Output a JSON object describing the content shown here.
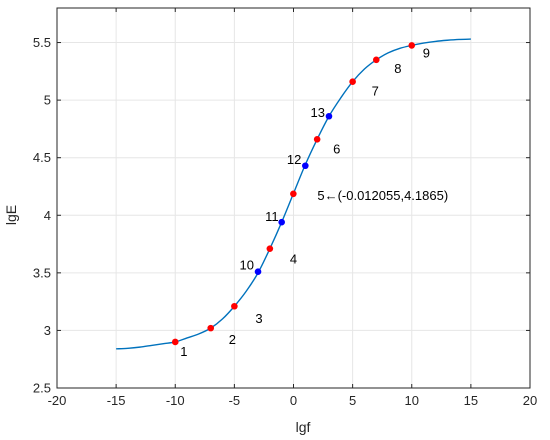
{
  "chart_data": {
    "type": "line",
    "title": "",
    "xlabel": "lgf",
    "ylabel": "lgE",
    "xlim": [
      -20,
      20
    ],
    "ylim": [
      2.5,
      5.8
    ],
    "x_ticks": [
      -20,
      -15,
      -10,
      -5,
      0,
      5,
      10,
      15,
      20
    ],
    "x_tick_labels": [
      "-20",
      "-15",
      "-10",
      "-5",
      "0",
      "5",
      "10",
      "15",
      "20"
    ],
    "y_ticks": [
      2.5,
      3,
      3.5,
      4,
      4.5,
      5,
      5.5
    ],
    "y_tick_labels": [
      "2.5",
      "3",
      "3.5",
      "4",
      "4.5",
      "5",
      "5.5"
    ],
    "grid": true,
    "colors": {
      "curve": "#0072BD",
      "red_points": "#ff0000",
      "blue_points": "#0000ff",
      "grid": "#e6e6e6",
      "axes": "#262626"
    },
    "curve": {
      "name": "",
      "x": [
        -15,
        -14,
        -13,
        -12,
        -11,
        -10,
        -9,
        -8,
        -7,
        -6,
        -5,
        -4,
        -3,
        -2,
        -1,
        0,
        1,
        2,
        3,
        4,
        5,
        6,
        7,
        8,
        9,
        10,
        11,
        12,
        13,
        14,
        15
      ],
      "y": [
        2.84,
        2.845,
        2.855,
        2.87,
        2.885,
        2.9,
        2.935,
        2.97,
        3.02,
        3.1,
        3.21,
        3.34,
        3.5,
        3.71,
        3.94,
        4.19,
        4.44,
        4.66,
        4.86,
        5.02,
        5.16,
        5.27,
        5.35,
        5.41,
        5.45,
        5.475,
        5.495,
        5.51,
        5.52,
        5.527,
        5.53
      ]
    },
    "points": [
      {
        "label": "1",
        "x": -10,
        "y": 2.9,
        "color": "red"
      },
      {
        "label": "2",
        "x": -7,
        "y": 3.02,
        "color": "red"
      },
      {
        "label": "3",
        "x": -5,
        "y": 3.21,
        "color": "red"
      },
      {
        "label": "4",
        "x": -2,
        "y": 3.71,
        "color": "red"
      },
      {
        "label": "5",
        "x": -0.012055,
        "y": 4.1865,
        "color": "red"
      },
      {
        "label": "6",
        "x": 2,
        "y": 4.66,
        "color": "red"
      },
      {
        "label": "7",
        "x": 5,
        "y": 5.16,
        "color": "red"
      },
      {
        "label": "8",
        "x": 7,
        "y": 5.35,
        "color": "red"
      },
      {
        "label": "9",
        "x": 10,
        "y": 5.475,
        "color": "red"
      },
      {
        "label": "10",
        "x": -3,
        "y": 3.51,
        "color": "blue"
      },
      {
        "label": "11",
        "x": -1,
        "y": 3.94,
        "color": "blue"
      },
      {
        "label": "12",
        "x": 1,
        "y": 4.43,
        "color": "blue"
      },
      {
        "label": "13",
        "x": 3,
        "y": 4.86,
        "color": "blue"
      }
    ],
    "annotations": [
      {
        "id": "a1",
        "text": "1"
      },
      {
        "id": "a2",
        "text": "2"
      },
      {
        "id": "a3",
        "text": "3"
      },
      {
        "id": "a4",
        "text": "4"
      },
      {
        "id": "a5",
        "text": "5←(-0.012055,4.1865)"
      },
      {
        "id": "a6",
        "text": "6"
      },
      {
        "id": "a7",
        "text": "7"
      },
      {
        "id": "a8",
        "text": "8"
      },
      {
        "id": "a9",
        "text": "9"
      },
      {
        "id": "a10",
        "text": "10"
      },
      {
        "id": "a11",
        "text": "11"
      },
      {
        "id": "a12",
        "text": "12"
      },
      {
        "id": "a13",
        "text": "13"
      }
    ]
  }
}
